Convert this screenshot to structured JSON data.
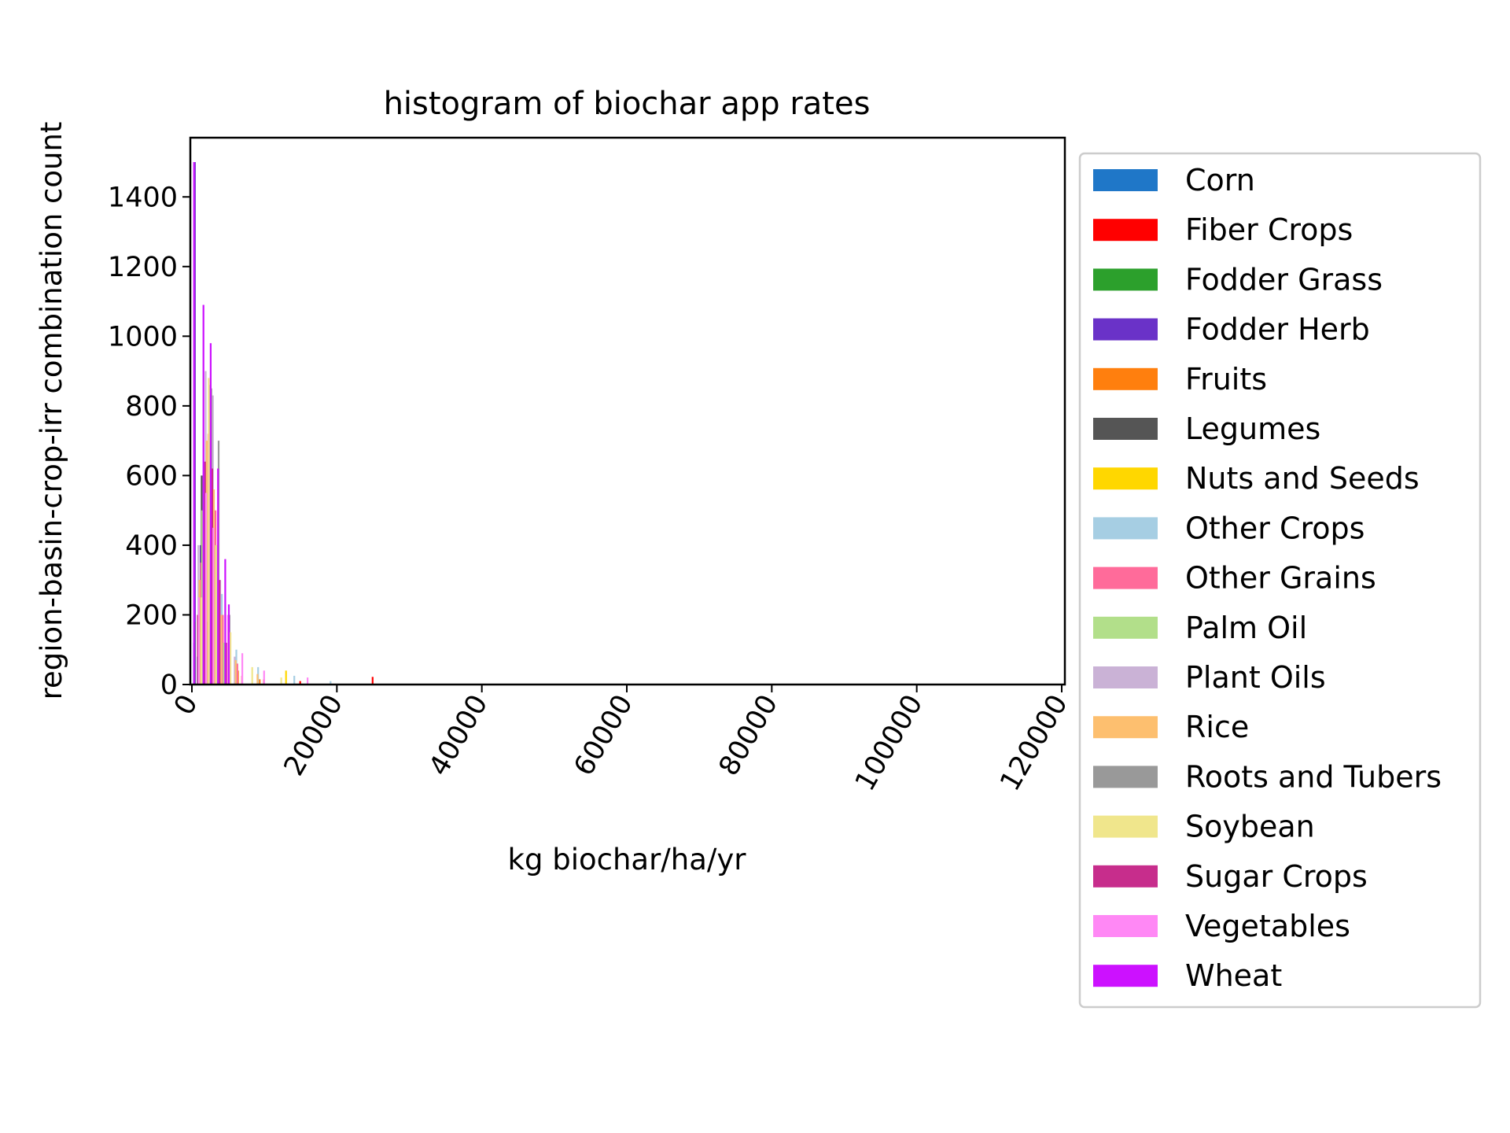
{
  "chart_data": {
    "type": "bar",
    "title": "histogram of biochar app rates",
    "xlabel": "kg biochar/ha/yr",
    "ylabel": "region-basin-crop-irr combination count",
    "xlim": [
      0,
      120000
    ],
    "ylim": [
      0,
      1570
    ],
    "xticks": [
      "0",
      "20000",
      "40000",
      "60000",
      "80000",
      "100000",
      "120000"
    ],
    "yticks": [
      "0",
      "200",
      "400",
      "600",
      "800",
      "1000",
      "1200",
      "1400"
    ],
    "grid": false,
    "legend": "right-outside",
    "colors": {
      "Corn": "#1f77c8",
      "Fiber Crops": "#ff0000",
      "Fodder Grass": "#2ca02c",
      "Fodder Herb": "#6a32c8",
      "Fruits": "#ff7f0e",
      "Legumes": "#555555",
      "Nuts and Seeds": "#ffd700",
      "Other Crops": "#a6cee3",
      "Other Grains": "#ff6b9a",
      "Palm Oil": "#b2df8a",
      "Plant Oils": "#cab2d6",
      "Rice": "#fdbf6f",
      "Roots and Tubers": "#999999",
      "Soybean": "#f0e68c",
      "Sugar Crops": "#c72d8c",
      "Vegetables": "#ff88f5",
      "Wheat": "#cc11ff"
    },
    "series": [
      {
        "name": "Corn",
        "x": [
          500,
          1000,
          1500,
          2000,
          2500,
          3000,
          3500,
          4000,
          5000
        ],
        "values": [
          120,
          80,
          60,
          70,
          50,
          40,
          30,
          20,
          10
        ]
      },
      {
        "name": "Fiber Crops",
        "x": [
          1000,
          2000,
          3000,
          4000,
          5000,
          7000,
          10000,
          15000,
          25000
        ],
        "values": [
          150,
          200,
          130,
          60,
          40,
          25,
          15,
          10,
          22
        ]
      },
      {
        "name": "Fodder Grass",
        "x": [
          300,
          1000,
          2000,
          3000
        ],
        "values": [
          300,
          250,
          180,
          90
        ]
      },
      {
        "name": "Fodder Herb",
        "x": [
          200,
          1000,
          2000
        ],
        "values": [
          1500,
          400,
          150
        ]
      },
      {
        "name": "Fruits",
        "x": [
          1000,
          2000,
          3000,
          4000,
          6000,
          9000
        ],
        "values": [
          220,
          300,
          250,
          120,
          40,
          15
        ]
      },
      {
        "name": "Legumes",
        "x": [
          500,
          1500,
          2500,
          3500,
          5000
        ],
        "values": [
          180,
          600,
          860,
          350,
          80
        ]
      },
      {
        "name": "Nuts and Seeds",
        "x": [
          1000,
          2000,
          3000,
          4000,
          6000,
          13000
        ],
        "values": [
          300,
          500,
          360,
          150,
          60,
          40
        ]
      },
      {
        "name": "Other Crops",
        "x": [
          1000,
          2500,
          4000,
          6000,
          9000,
          14000,
          19000
        ],
        "values": [
          150,
          420,
          260,
          100,
          50,
          25,
          10
        ]
      },
      {
        "name": "Other Grains",
        "x": [
          1000,
          2000,
          3000,
          4000,
          6000
        ],
        "values": [
          350,
          720,
          500,
          200,
          60
        ]
      },
      {
        "name": "Palm Oil",
        "x": [
          1000,
          2000,
          3000,
          4000
        ],
        "values": [
          500,
          780,
          400,
          120
        ]
      },
      {
        "name": "Plant Oils",
        "x": [
          1000,
          2000,
          3000,
          4000,
          6000
        ],
        "values": [
          400,
          900,
          830,
          300,
          80
        ]
      },
      {
        "name": "Rice",
        "x": [
          1000,
          2000,
          3000,
          4000,
          6000,
          9000
        ],
        "values": [
          300,
          700,
          560,
          200,
          70,
          30
        ]
      },
      {
        "name": "Roots and Tubers",
        "x": [
          1500,
          2500,
          3500,
          5000
        ],
        "values": [
          300,
          850,
          700,
          200
        ]
      },
      {
        "name": "Soybean",
        "x": [
          1000,
          2000,
          3000,
          5000,
          8000,
          12000
        ],
        "values": [
          250,
          880,
          400,
          150,
          50,
          20
        ]
      },
      {
        "name": "Sugar Crops",
        "x": [
          1000,
          2000,
          3000,
          4000,
          5000
        ],
        "values": [
          200,
          640,
          620,
          300,
          120
        ]
      },
      {
        "name": "Vegetables",
        "x": [
          1000,
          2000,
          3000,
          5000,
          7000,
          10000,
          16000
        ],
        "values": [
          250,
          550,
          450,
          200,
          90,
          40,
          20
        ]
      },
      {
        "name": "Wheat",
        "x": [
          200,
          1500,
          2500,
          3500,
          4500,
          5000
        ],
        "values": [
          1500,
          1090,
          980,
          620,
          360,
          230
        ]
      }
    ]
  }
}
